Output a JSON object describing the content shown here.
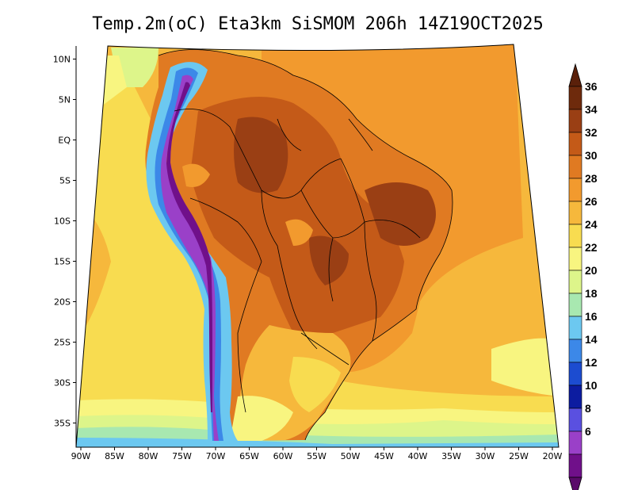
{
  "title": "Temp.2m(oC) Eta3km SiSMOM 206h 14Z19OCT2025",
  "lat_ticks": [
    "10N",
    "5N",
    "EQ",
    "5S",
    "10S",
    "15S",
    "20S",
    "25S",
    "30S",
    "35S"
  ],
  "lon_ticks": [
    "90W",
    "85W",
    "80W",
    "75W",
    "70W",
    "65W",
    "60W",
    "55W",
    "50W",
    "45W",
    "40W",
    "35W",
    "30W",
    "25W",
    "20W"
  ],
  "legend": {
    "labels": [
      "36",
      "34",
      "32",
      "30",
      "28",
      "26",
      "24",
      "22",
      "20",
      "18",
      "16",
      "14",
      "12",
      "10",
      "8",
      "6"
    ],
    "colors": [
      "#6e2a0c",
      "#9a3f14",
      "#c45a18",
      "#e07a22",
      "#f29a2e",
      "#f6b83c",
      "#f8dc50",
      "#f8f580",
      "#ddf58a",
      "#a8e8b0",
      "#6cc8f0",
      "#3c88e8",
      "#1c4cd0",
      "#0c1ca0",
      "#5a50e0",
      "#9a40c8",
      "#70108a"
    ],
    "under_color": "#5a0a6a",
    "over_color": "#5a200a"
  }
}
